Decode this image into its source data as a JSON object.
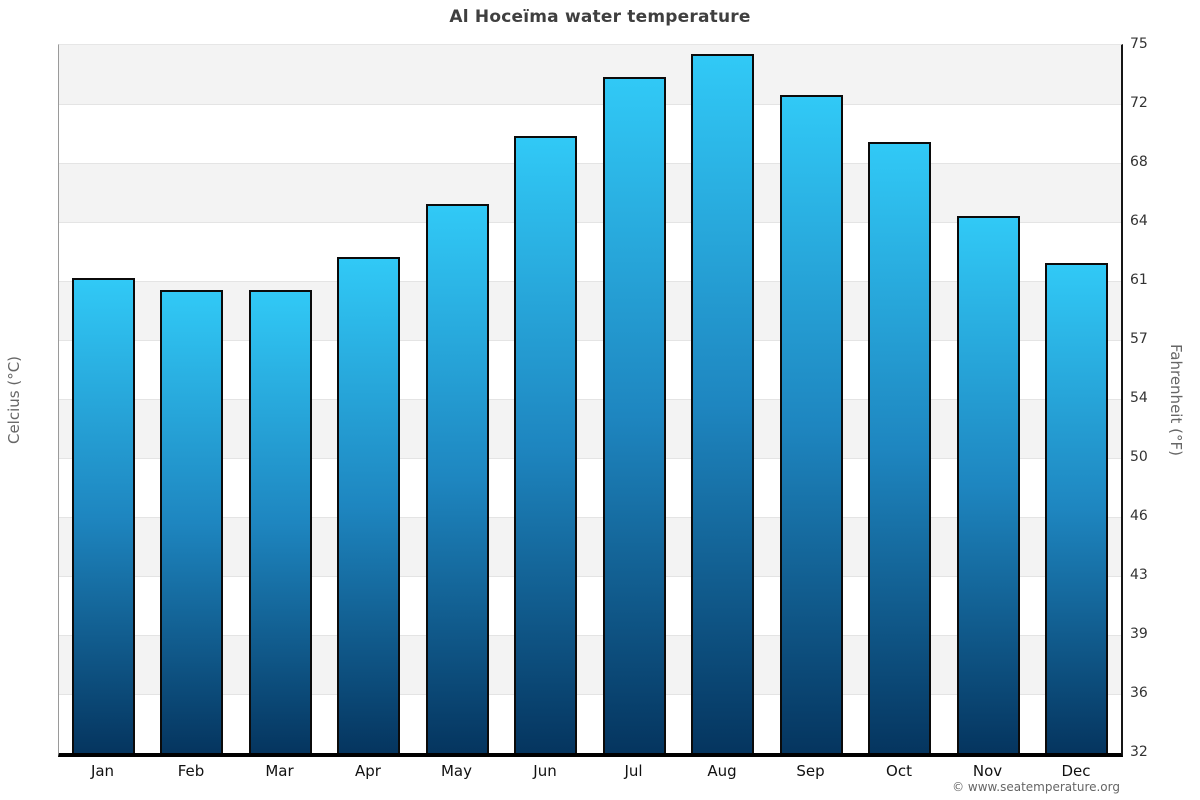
{
  "chart_data": {
    "type": "bar",
    "title": "Al Hoceïma water temperature",
    "categories": [
      "Jan",
      "Feb",
      "Mar",
      "Apr",
      "May",
      "Jun",
      "Jul",
      "Aug",
      "Sep",
      "Oct",
      "Nov",
      "Dec"
    ],
    "values": [
      16.1,
      15.7,
      15.7,
      16.8,
      18.6,
      20.9,
      22.9,
      23.7,
      22.3,
      20.7,
      18.2,
      16.6
    ],
    "ylabel": "Celcius (°C)",
    "ylabel_right": "Fahrenheit (°F)",
    "ylim": [
      0,
      24
    ],
    "yticks_left": [
      24,
      22,
      20,
      18,
      16,
      14,
      12,
      10,
      8,
      6,
      4,
      2,
      0
    ],
    "yticks_right": [
      75,
      72,
      68,
      64,
      61,
      57,
      54,
      50,
      46,
      43,
      39,
      36,
      32
    ],
    "grid": "horizontal alternating bands",
    "legend": "none",
    "bar_style": {
      "gradient_top": "#31c9f6",
      "gradient_mid": "#1e86c0",
      "gradient_bottom": "#05355f",
      "border": "#0b0b0b"
    },
    "band_colors": [
      "#f3f3f3",
      "#ffffff"
    ]
  },
  "footer": {
    "copyright": "© www.seatemperature.org"
  }
}
